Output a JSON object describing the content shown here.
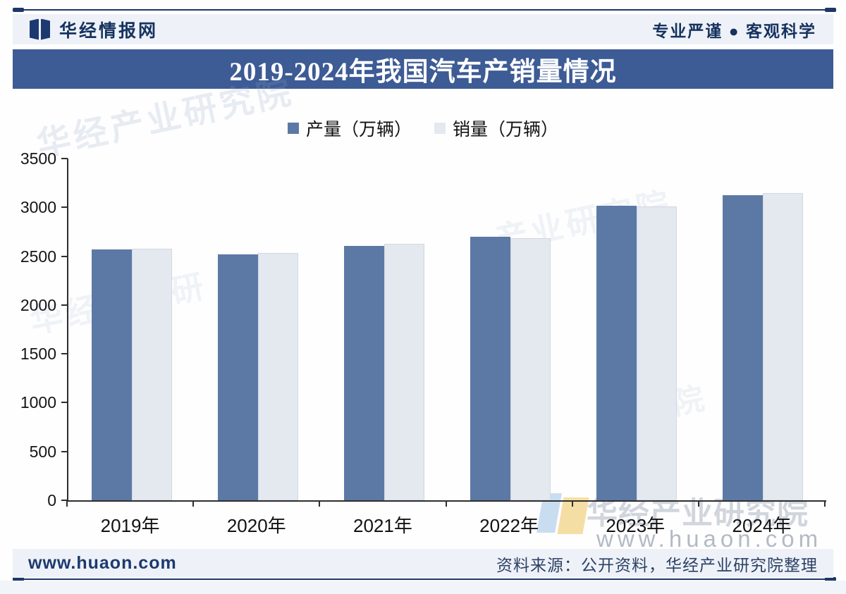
{
  "header": {
    "brand": "华经情报网",
    "slogan": "专业严谨 ● 客观科学"
  },
  "title": "2019-2024年我国汽车产销量情况",
  "legend": [
    {
      "label": "产量（万辆）",
      "color": "#5c79a6"
    },
    {
      "label": "销量（万辆）",
      "color": "#e4e8ef"
    }
  ],
  "chart_data": {
    "type": "bar",
    "title": "2019-2024年我国汽车产销量情况",
    "categories": [
      "2019年",
      "2020年",
      "2021年",
      "2022年",
      "2023年",
      "2024年"
    ],
    "series": [
      {
        "name": "产量（万辆）",
        "color": "#5c79a6",
        "values": [
          2572.1,
          2522.5,
          2608.2,
          2702.1,
          3016.1,
          3128.2
        ]
      },
      {
        "name": "销量（万辆）",
        "color": "#e4e8ef",
        "values": [
          2576.9,
          2531.1,
          2627.5,
          2686.4,
          3009.4,
          3143.6
        ]
      }
    ],
    "xlabel": "",
    "ylabel": "",
    "ylim": [
      0,
      3500
    ],
    "yticks": [
      0,
      500,
      1000,
      1500,
      2000,
      2500,
      3000,
      3500
    ],
    "grid": false,
    "legend_position": "top"
  },
  "footer": {
    "website": "www.huaon.com",
    "source": "资料来源：公开资料，华经产业研究院整理"
  },
  "watermarks": {
    "ghost1": "华经产业研究院",
    "ghost2": "产业研究院",
    "ghost3": "华经产业研",
    "ghost4": "究院",
    "outline_text": "华经产业研究院",
    "url_text": "www.huaon.com"
  },
  "colors": {
    "banner": "#3d5b95",
    "bar_production": "#5c79a6",
    "bar_sales": "#e4e8ef",
    "navy_text": "#16325f",
    "rule_line": "#1d3866",
    "band_bg": "#eef2f8"
  }
}
